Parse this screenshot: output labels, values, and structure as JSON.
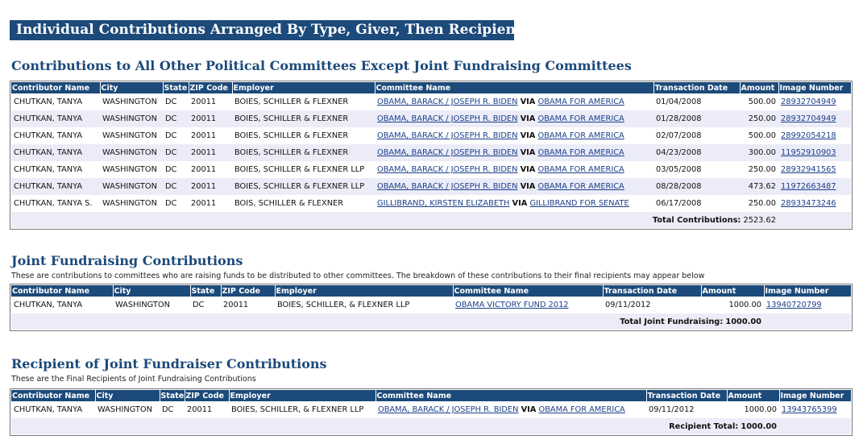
{
  "page_title": "Individual Contributions Arranged By Type, Giver, Then Recipient",
  "sections": [
    {
      "title": "Contributions to All Other Political Committees Except Joint Fundraising Committees",
      "columns": [
        "Contributor Name",
        "City",
        "State",
        "ZIP Code",
        "Employer",
        "Committee Name",
        "Transaction Date",
        "Amount",
        "Image Number"
      ],
      "rows": [
        {
          "contributor": "CHUTKAN, TANYA",
          "city": "WASHINGTON",
          "state": "DC",
          "zip": "20011",
          "employer": "BOIES, SCHILLER & FLEXNER",
          "recipient": "OBAMA, BARACK / JOSEPH R. BIDEN",
          "via": "VIA",
          "conduit": "OBAMA FOR AMERICA",
          "date": "01/04/2008",
          "amount": "500.00",
          "image": "28932704949"
        },
        {
          "contributor": "CHUTKAN, TANYA",
          "city": "WASHINGTON",
          "state": "DC",
          "zip": "20011",
          "employer": "BOIES, SCHILLER & FLEXNER",
          "recipient": "OBAMA, BARACK / JOSEPH R. BIDEN",
          "via": "VIA",
          "conduit": "OBAMA FOR AMERICA",
          "date": "01/28/2008",
          "amount": "250.00",
          "image": "28932704949"
        },
        {
          "contributor": "CHUTKAN, TANYA",
          "city": "WASHINGTON",
          "state": "DC",
          "zip": "20011",
          "employer": "BOIES, SCHILLER & FLEXNER",
          "recipient": "OBAMA, BARACK / JOSEPH R. BIDEN",
          "via": "VIA",
          "conduit": "OBAMA FOR AMERICA",
          "date": "02/07/2008",
          "amount": "500.00",
          "image": "28992054218"
        },
        {
          "contributor": "CHUTKAN, TANYA",
          "city": "WASHINGTON",
          "state": "DC",
          "zip": "20011",
          "employer": "BOIES, SCHILLER & FLEXNER",
          "recipient": "OBAMA, BARACK / JOSEPH R. BIDEN",
          "via": "VIA",
          "conduit": "OBAMA FOR AMERICA",
          "date": "04/23/2008",
          "amount": "300.00",
          "image": "11952910903"
        },
        {
          "contributor": "CHUTKAN, TANYA",
          "city": "WASHINGTON",
          "state": "DC",
          "zip": "20011",
          "employer": "BOIES, SCHILLER & FLEXNER LLP",
          "recipient": "OBAMA, BARACK / JOSEPH R. BIDEN",
          "via": "VIA",
          "conduit": "OBAMA FOR AMERICA",
          "date": "03/05/2008",
          "amount": "250.00",
          "image": "28932941565"
        },
        {
          "contributor": "CHUTKAN, TANYA",
          "city": "WASHINGTON",
          "state": "DC",
          "zip": "20011",
          "employer": "BOIES, SCHILLER & FLEXNER LLP",
          "recipient": "OBAMA, BARACK / JOSEPH R. BIDEN",
          "via": "VIA",
          "conduit": "OBAMA FOR AMERICA",
          "date": "08/28/2008",
          "amount": "473.62",
          "image": "11972663487"
        },
        {
          "contributor": "CHUTKAN, TANYA S.",
          "city": "WASHINGTON",
          "state": "DC",
          "zip": "20011",
          "employer": "BOIS, SCHILLER & FLEXNER",
          "recipient": "GILLIBRAND, KIRSTEN ELIZABETH",
          "via": "VIA",
          "conduit": "GILLIBRAND FOR SENATE",
          "date": "06/17/2008",
          "amount": "250.00",
          "image": "28933473246"
        }
      ],
      "total": {
        "label": "Total Contributions:",
        "value": "2523.62"
      }
    },
    {
      "title": "Joint Fundraising Contributions",
      "description": "These are contributions to committees who are raising funds to be distributed to other committees. The breakdown of these contributions to their final recipients may appear below",
      "columns": [
        "Contributor Name",
        "City",
        "State",
        "ZIP Code",
        "Employer",
        "Committee Name",
        "Transaction Date",
        "Amount",
        "Image Number"
      ],
      "rows": [
        {
          "contributor": "CHUTKAN, TANYA",
          "city": "WASHINGTON",
          "state": "DC",
          "zip": "20011",
          "employer": "BOIES, SCHILLER, & FLEXNER LLP",
          "recipient": "OBAMA VICTORY FUND 2012",
          "date": "09/11/2012",
          "amount": "1000.00",
          "image": "13940720799"
        }
      ],
      "total": {
        "label": "Total Joint Fundraising:",
        "value": "1000.00"
      }
    },
    {
      "title": "Recipient of Joint Fundraiser Contributions",
      "description": "These are the Final Recipients of Joint Fundraising Contributions",
      "columns": [
        "Contributor Name",
        "City",
        "State",
        "ZIP Code",
        "Employer",
        "Committee Name",
        "Transaction Date",
        "Amount",
        "Image Number"
      ],
      "rows": [
        {
          "contributor": "CHUTKAN, TANYA",
          "city": "WASHINGTON",
          "state": "DC",
          "zip": "20011",
          "employer": "BOIES, SCHILLER, & FLEXNER LLP",
          "recipient": "OBAMA, BARACK / JOSEPH R. BIDEN",
          "via": "VIA",
          "conduit": "OBAMA FOR AMERICA",
          "date": "09/11/2012",
          "amount": "1000.00",
          "image": "13943765399"
        }
      ],
      "total": {
        "label": "Recipient Total:",
        "value": "1000.00"
      }
    }
  ]
}
